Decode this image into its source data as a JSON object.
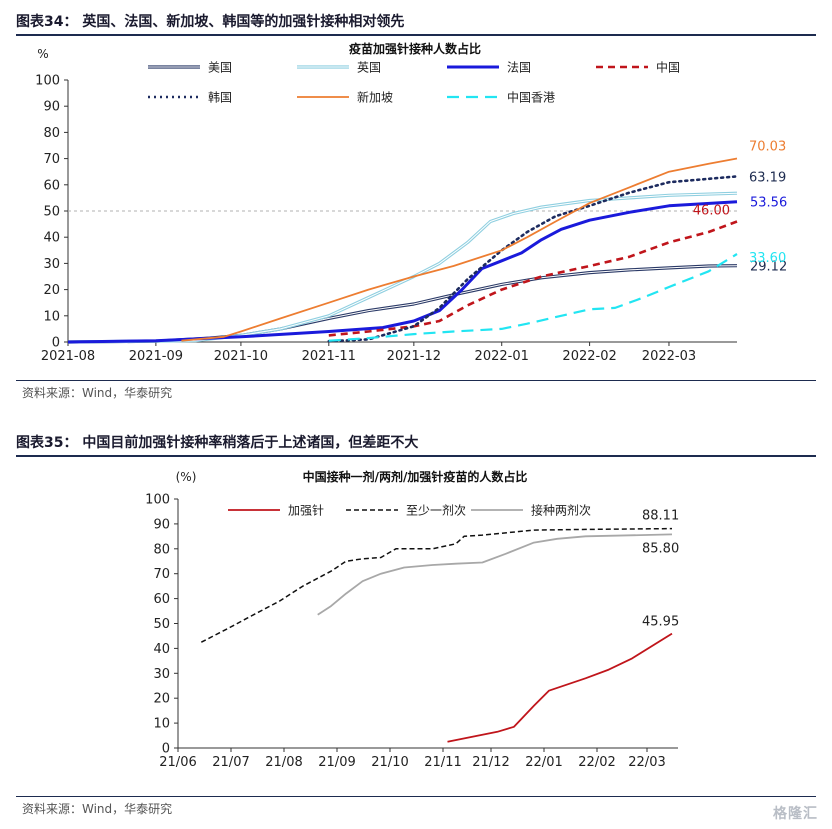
{
  "fig1": {
    "caption": "图表34：  英国、法国、新加坡、韩国等的加强针接种相对领先",
    "source": "资料来源：Wind，华泰研究"
  },
  "fig2": {
    "caption": "图表35：  中国目前加强针接种率稍落后于上述诸国，但差距不大",
    "source": "资料来源：Wind，华泰研究"
  },
  "watermark": "格隆汇",
  "chart_data": [
    {
      "type": "line",
      "title": "疫苗加强针接种人数占比",
      "ylabel": "%",
      "ylim": [
        0,
        100
      ],
      "yticks": [
        0,
        10,
        20,
        30,
        40,
        50,
        60,
        70,
        80,
        90,
        100
      ],
      "xlim": [
        "2021-08-01",
        "2022-03-25"
      ],
      "xticks": [
        "2021-08",
        "2021-09",
        "2021-10",
        "2021-11",
        "2021-12",
        "2022-01",
        "2022-02",
        "2022-03"
      ],
      "reference_line": 50,
      "grid": false,
      "legend": "top",
      "series": [
        {
          "name": "美国",
          "color": "#2b3a67",
          "style": "double",
          "end_label": "29.12",
          "points": [
            [
              "2021-08-01",
              0
            ],
            [
              "2021-09-01",
              0.3
            ],
            [
              "2021-09-20",
              1.5
            ],
            [
              "2021-10-01",
              2.5
            ],
            [
              "2021-10-15",
              5
            ],
            [
              "2021-11-01",
              9
            ],
            [
              "2021-11-15",
              12
            ],
            [
              "2021-12-01",
              14.5
            ],
            [
              "2021-12-15",
              18
            ],
            [
              "2022-01-01",
              22
            ],
            [
              "2022-01-15",
              24.5
            ],
            [
              "2022-02-01",
              26.5
            ],
            [
              "2022-02-15",
              27.5
            ],
            [
              "2022-03-01",
              28.3
            ],
            [
              "2022-03-15",
              29
            ],
            [
              "2022-03-25",
              29.12
            ]
          ]
        },
        {
          "name": "英国",
          "color": "#8fcfe0",
          "style": "double",
          "end_label": "",
          "points": [
            [
              "2021-08-01",
              0
            ],
            [
              "2021-09-15",
              0.5
            ],
            [
              "2021-10-01",
              2.5
            ],
            [
              "2021-10-15",
              5
            ],
            [
              "2021-11-01",
              10
            ],
            [
              "2021-11-15",
              17
            ],
            [
              "2021-12-01",
              25
            ],
            [
              "2021-12-10",
              30
            ],
            [
              "2021-12-20",
              38
            ],
            [
              "2021-12-28",
              46
            ],
            [
              "2022-01-05",
              49
            ],
            [
              "2022-01-15",
              51.5
            ],
            [
              "2022-02-01",
              54
            ],
            [
              "2022-02-15",
              55
            ],
            [
              "2022-03-01",
              56
            ],
            [
              "2022-03-25",
              56.8
            ]
          ]
        },
        {
          "name": "法国",
          "color": "#1a1adb",
          "style": "solid-thick",
          "end_label": "53.56",
          "points": [
            [
              "2021-08-01",
              0
            ],
            [
              "2021-09-01",
              0.5
            ],
            [
              "2021-10-01",
              2
            ],
            [
              "2021-11-01",
              4
            ],
            [
              "2021-11-20",
              5.5
            ],
            [
              "2021-12-01",
              8
            ],
            [
              "2021-12-10",
              12
            ],
            [
              "2021-12-18",
              20
            ],
            [
              "2021-12-25",
              28
            ],
            [
              "2022-01-01",
              31
            ],
            [
              "2022-01-08",
              34
            ],
            [
              "2022-01-15",
              39
            ],
            [
              "2022-01-22",
              43
            ],
            [
              "2022-02-01",
              46.5
            ],
            [
              "2022-02-15",
              49.5
            ],
            [
              "2022-03-01",
              52
            ],
            [
              "2022-03-25",
              53.56
            ]
          ]
        },
        {
          "name": "中国",
          "color": "#c0151b",
          "style": "dashed-thick",
          "end_label": "46.00",
          "points": [
            [
              "2021-11-01",
              2.5
            ],
            [
              "2021-11-15",
              4
            ],
            [
              "2021-12-01",
              6
            ],
            [
              "2021-12-10",
              8
            ],
            [
              "2021-12-20",
              14
            ],
            [
              "2022-01-01",
              20
            ],
            [
              "2022-01-15",
              25
            ],
            [
              "2022-02-01",
              29
            ],
            [
              "2022-02-15",
              32.5
            ],
            [
              "2022-03-01",
              38
            ],
            [
              "2022-03-15",
              42
            ],
            [
              "2022-03-25",
              46
            ]
          ]
        },
        {
          "name": "韩国",
          "color": "#1d2b5f",
          "style": "dotted",
          "end_label": "63.19",
          "points": [
            [
              "2021-11-01",
              0.3
            ],
            [
              "2021-11-15",
              1
            ],
            [
              "2021-12-01",
              6
            ],
            [
              "2021-12-10",
              13
            ],
            [
              "2021-12-20",
              24
            ],
            [
              "2022-01-01",
              35
            ],
            [
              "2022-01-10",
              42
            ],
            [
              "2022-01-20",
              48
            ],
            [
              "2022-02-01",
              52
            ],
            [
              "2022-02-15",
              57
            ],
            [
              "2022-03-01",
              61
            ],
            [
              "2022-03-25",
              63.19
            ]
          ]
        },
        {
          "name": "新加坡",
          "color": "#ed7d31",
          "style": "solid",
          "end_label": "70.03",
          "points": [
            [
              "2021-09-10",
              0.5
            ],
            [
              "2021-09-25",
              2
            ],
            [
              "2021-10-01",
              4
            ],
            [
              "2021-10-15",
              9
            ],
            [
              "2021-11-01",
              15
            ],
            [
              "2021-11-15",
              20
            ],
            [
              "2021-12-01",
              25
            ],
            [
              "2021-12-15",
              29
            ],
            [
              "2022-01-01",
              35
            ],
            [
              "2022-01-10",
              40
            ],
            [
              "2022-01-20",
              46
            ],
            [
              "2022-02-01",
              53
            ],
            [
              "2022-02-15",
              59
            ],
            [
              "2022-03-01",
              65
            ],
            [
              "2022-03-15",
              68
            ],
            [
              "2022-03-25",
              70.03
            ]
          ]
        },
        {
          "name": "中国香港",
          "color": "#22e5f2",
          "style": "dashed-long",
          "end_label": "33.60",
          "points": [
            [
              "2021-11-01",
              0.5
            ],
            [
              "2021-11-15",
              1.5
            ],
            [
              "2021-12-01",
              3
            ],
            [
              "2021-12-15",
              4
            ],
            [
              "2022-01-01",
              5
            ],
            [
              "2022-01-10",
              7
            ],
            [
              "2022-01-20",
              9.5
            ],
            [
              "2022-02-01",
              12.5
            ],
            [
              "2022-02-10",
              13
            ],
            [
              "2022-02-20",
              17
            ],
            [
              "2022-03-01",
              21
            ],
            [
              "2022-03-15",
              27
            ],
            [
              "2022-03-25",
              33.6
            ]
          ]
        }
      ]
    },
    {
      "type": "line",
      "title": "中国接种一剂/两剂/加强针疫苗的人数占比",
      "ylabel": "(%)",
      "ylim": [
        0,
        100
      ],
      "yticks": [
        0,
        10,
        20,
        30,
        40,
        50,
        60,
        70,
        80,
        90,
        100
      ],
      "xlim": [
        "2021-06-01",
        "2022-03-25"
      ],
      "xticks": [
        "21/06",
        "21/07",
        "21/08",
        "21/09",
        "21/10",
        "21/11",
        "21/12",
        "22/01",
        "22/02",
        "22/03"
      ],
      "grid": false,
      "legend": "top",
      "series": [
        {
          "name": "加强针",
          "color": "#c0151b",
          "style": "solid",
          "end_label": "45.95",
          "points": [
            [
              "2021-11-10",
              2.5
            ],
            [
              "2021-11-25",
              4.5
            ],
            [
              "2021-12-10",
              6.5
            ],
            [
              "2021-12-20",
              8.5
            ],
            [
              "2022-01-01",
              17
            ],
            [
              "2022-01-10",
              23
            ],
            [
              "2022-02-01",
              28
            ],
            [
              "2022-02-15",
              31.5
            ],
            [
              "2022-03-01",
              36
            ],
            [
              "2022-03-25",
              45.95
            ]
          ]
        },
        {
          "name": "至少一剂次",
          "color": "#111111",
          "style": "dashed",
          "end_label": "88.11",
          "points": [
            [
              "2021-06-15",
              42.5
            ],
            [
              "2021-07-01",
              48
            ],
            [
              "2021-07-15",
              53
            ],
            [
              "2021-08-01",
              59
            ],
            [
              "2021-08-15",
              65
            ],
            [
              "2021-09-01",
              71
            ],
            [
              "2021-09-10",
              75
            ],
            [
              "2021-09-20",
              76
            ],
            [
              "2021-10-01",
              76.5
            ],
            [
              "2021-10-10",
              80
            ],
            [
              "2021-11-01",
              80
            ],
            [
              "2021-11-15",
              82
            ],
            [
              "2021-11-20",
              85
            ],
            [
              "2021-12-01",
              85.5
            ],
            [
              "2022-01-01",
              87.5
            ],
            [
              "2022-02-01",
              87.8
            ],
            [
              "2022-03-25",
              88.11
            ]
          ]
        },
        {
          "name": "接种两剂次",
          "color": "#a8a8a8",
          "style": "solid",
          "end_label": "85.80",
          "points": [
            [
              "2021-08-24",
              53.5
            ],
            [
              "2021-09-01",
              57
            ],
            [
              "2021-09-10",
              62
            ],
            [
              "2021-09-20",
              67
            ],
            [
              "2021-10-01",
              70
            ],
            [
              "2021-10-15",
              72.5
            ],
            [
              "2021-11-01",
              73.5
            ],
            [
              "2021-11-15",
              74
            ],
            [
              "2021-12-01",
              74.5
            ],
            [
              "2021-12-15",
              78
            ],
            [
              "2022-01-01",
              82.5
            ],
            [
              "2022-01-15",
              84
            ],
            [
              "2022-02-01",
              85
            ],
            [
              "2022-03-25",
              85.8
            ]
          ]
        }
      ]
    }
  ]
}
